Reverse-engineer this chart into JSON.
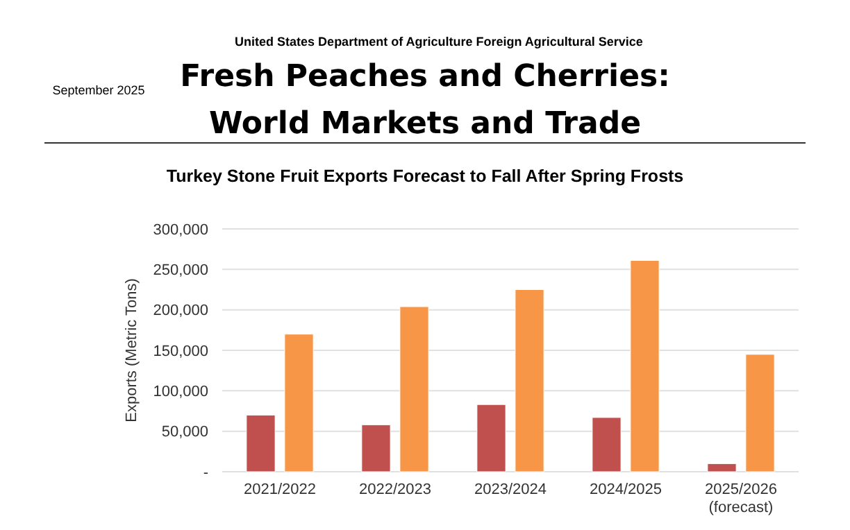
{
  "chart_data": {
    "type": "bar",
    "title": "Fresh Peaches and Cherries: World Markets and Trade",
    "subtitle": "Turkey Stone Fruit Exports Forecast to Fall After Spring Frosts",
    "annotations": [
      "United States Department of Agriculture Foreign Agricultural Service",
      "September 2025"
    ],
    "ylabel": "Exports (Metric Tons)",
    "categories": [
      "2021/2022",
      "2022/2023",
      "2023/2024",
      "2024/2025",
      "2025/2026 (forecast)"
    ],
    "series": [
      {
        "color": "#c0504d",
        "values": [
          70000,
          58000,
          83000,
          67000,
          10000
        ]
      },
      {
        "color": "#f79646",
        "values": [
          170000,
          204000,
          225000,
          261000,
          145000
        ]
      }
    ],
    "ylim": [
      0,
      300000
    ],
    "yticks": [
      {
        "value": 0,
        "label": "-"
      },
      {
        "value": 50000,
        "label": "50,000"
      },
      {
        "value": 100000,
        "label": "100,000"
      },
      {
        "value": 150000,
        "label": "150,000"
      },
      {
        "value": 200000,
        "label": "200,000"
      },
      {
        "value": 250000,
        "label": "250,000"
      },
      {
        "value": 300000,
        "label": "300,000"
      }
    ],
    "grid": "y"
  }
}
